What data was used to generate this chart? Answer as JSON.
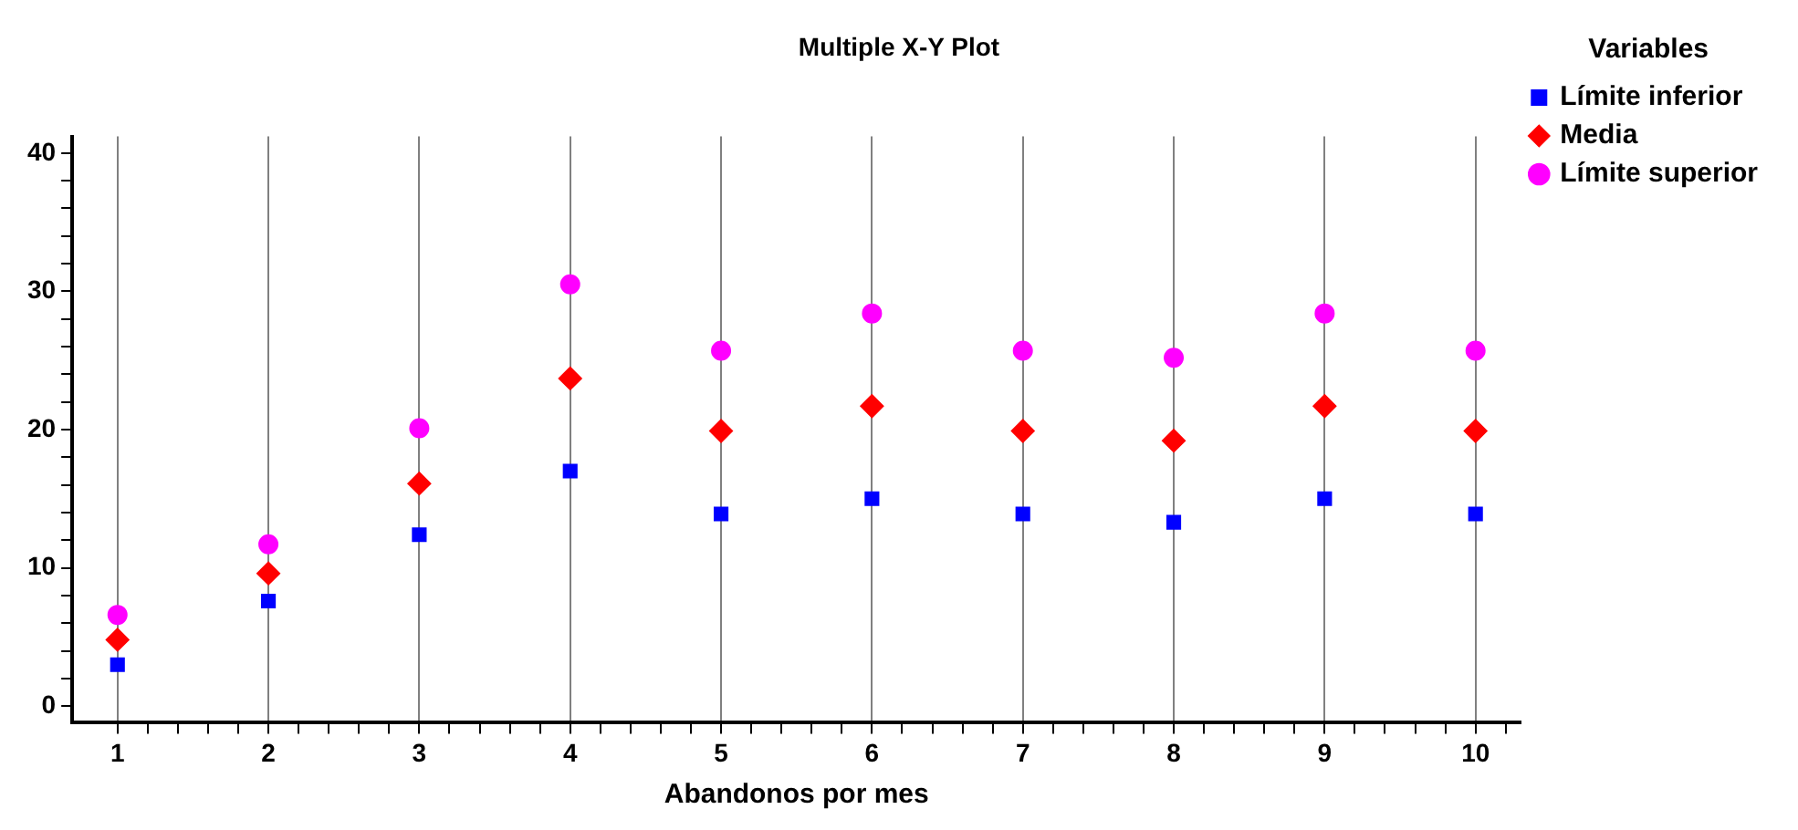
{
  "chart_data": {
    "type": "scatter",
    "title": "Multiple X-Y Plot",
    "xlabel": "Abandonos por mes",
    "legend_title": "Variables",
    "legend": "top right",
    "grid": "x",
    "x": [
      1,
      2,
      3,
      4,
      5,
      6,
      7,
      8,
      9,
      10
    ],
    "xlim": [
      0.7,
      10.3
    ],
    "xticks": [
      1,
      {
        "value": 1.2,
        "label": null
      },
      {
        "value": 1.4,
        "label": null
      },
      {
        "value": 1.6,
        "label": null
      },
      {
        "value": 1.8,
        "label": null
      },
      2,
      {
        "value": 2.2,
        "label": null
      },
      {
        "value": 2.4,
        "label": null
      },
      {
        "value": 2.6,
        "label": null
      },
      {
        "value": 2.8,
        "label": null
      },
      3,
      {
        "value": 3.2,
        "label": null
      },
      {
        "value": 3.4,
        "label": null
      },
      {
        "value": 3.6,
        "label": null
      },
      {
        "value": 3.8,
        "label": null
      },
      4,
      {
        "value": 4.2,
        "label": null
      },
      {
        "value": 4.4,
        "label": null
      },
      {
        "value": 4.6,
        "label": null
      },
      {
        "value": 4.8,
        "label": null
      },
      5,
      {
        "value": 5.2,
        "label": null
      },
      {
        "value": 5.4,
        "label": null
      },
      {
        "value": 5.6,
        "label": null
      },
      {
        "value": 5.8,
        "label": null
      },
      6,
      {
        "value": 6.2,
        "label": null
      },
      {
        "value": 6.4,
        "label": null
      },
      {
        "value": 6.6,
        "label": null
      },
      {
        "value": 6.8,
        "label": null
      },
      7,
      {
        "value": 7.2,
        "label": null
      },
      {
        "value": 7.4,
        "label": null
      },
      {
        "value": 7.6,
        "label": null
      },
      {
        "value": 7.8,
        "label": null
      },
      8,
      {
        "value": 8.2,
        "label": null
      },
      {
        "value": 8.4,
        "label": null
      },
      {
        "value": 8.6,
        "label": null
      },
      {
        "value": 8.8,
        "label": null
      },
      9,
      {
        "value": 9.2,
        "label": null
      },
      {
        "value": 9.4,
        "label": null
      },
      {
        "value": 9.6,
        "label": null
      },
      {
        "value": 9.8,
        "label": null
      },
      10,
      {
        "value": 10.2,
        "label": null
      }
    ],
    "ylim": [
      -1.2,
      41.2
    ],
    "yticks": [
      0,
      {
        "value": 2,
        "label": null
      },
      {
        "value": 4,
        "label": null
      },
      {
        "value": 6,
        "label": null
      },
      {
        "value": 8,
        "label": null
      },
      10,
      {
        "value": 12,
        "label": null
      },
      {
        "value": 14,
        "label": null
      },
      {
        "value": 16,
        "label": null
      },
      {
        "value": 18,
        "label": null
      },
      20,
      {
        "value": 22,
        "label": null
      },
      {
        "value": 24,
        "label": null
      },
      {
        "value": 26,
        "label": null
      },
      {
        "value": 28,
        "label": null
      },
      30,
      {
        "value": 32,
        "label": null
      },
      {
        "value": 34,
        "label": null
      },
      {
        "value": 36,
        "label": null
      },
      {
        "value": 38,
        "label": null
      },
      40
    ],
    "series": [
      {
        "name": "Límite inferior",
        "color": "#0000ff",
        "marker": "square",
        "values": [
          3.0,
          7.6,
          12.4,
          17.0,
          13.9,
          15.0,
          13.9,
          13.3,
          15.0,
          13.9
        ]
      },
      {
        "name": "Media",
        "color": "#ff0000",
        "marker": "diamond",
        "values": [
          4.8,
          9.6,
          16.1,
          23.7,
          19.9,
          21.7,
          19.9,
          19.2,
          21.7,
          19.9
        ]
      },
      {
        "name": "Límite superior",
        "color": "#ff00ff",
        "marker": "circle",
        "values": [
          6.6,
          11.7,
          20.1,
          30.5,
          25.7,
          28.4,
          25.7,
          25.2,
          28.4,
          25.7
        ]
      }
    ]
  }
}
